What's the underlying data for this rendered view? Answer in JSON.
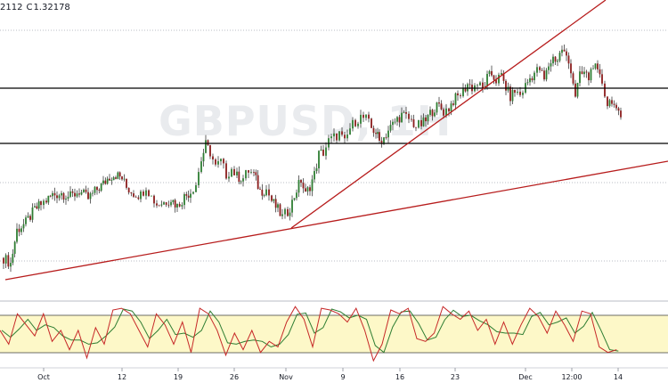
{
  "header": {
    "open_fragment": "2112",
    "close_label": "C",
    "close_value": "1.32178"
  },
  "watermark": "GBPUSD, 1H",
  "chart_data": {
    "type": "candlestick",
    "symbol": "GBPUSD",
    "x_tick_labels": [
      "Oct",
      "12",
      "19",
      "26",
      "Nov",
      "9",
      "16",
      "23",
      "Dec",
      "12:00",
      "14"
    ],
    "price_series": [
      [
        0,
        0.05
      ],
      [
        0.8,
        0.02
      ],
      [
        1.5,
        0.2
      ],
      [
        2.5,
        0.24
      ],
      [
        3.5,
        0.31
      ],
      [
        4.2,
        0.34
      ],
      [
        4.8,
        0.36
      ],
      [
        5.5,
        0.39
      ],
      [
        6.5,
        0.4
      ],
      [
        7.5,
        0.38
      ],
      [
        8.5,
        0.41
      ],
      [
        9.5,
        0.37
      ],
      [
        10.5,
        0.42
      ],
      [
        11.2,
        0.45
      ],
      [
        11.9,
        0.49
      ],
      [
        12.6,
        0.5
      ],
      [
        13.3,
        0.48
      ],
      [
        13.8,
        0.43
      ],
      [
        14.6,
        0.4
      ],
      [
        15.4,
        0.39
      ],
      [
        16,
        0.44
      ],
      [
        16.6,
        0.38
      ],
      [
        17.2,
        0.34
      ],
      [
        18,
        0.35
      ],
      [
        18.8,
        0.37
      ],
      [
        19.5,
        0.33
      ],
      [
        20.3,
        0.38
      ],
      [
        21,
        0.41
      ],
      [
        21.6,
        0.45
      ],
      [
        22.2,
        0.58
      ],
      [
        22.7,
        0.66
      ],
      [
        23.2,
        0.62
      ],
      [
        23.8,
        0.54
      ],
      [
        24.4,
        0.57
      ],
      [
        25,
        0.5
      ],
      [
        25.6,
        0.53
      ],
      [
        26.2,
        0.49
      ],
      [
        26.9,
        0.48
      ],
      [
        27.5,
        0.52
      ],
      [
        28.1,
        0.5
      ],
      [
        28.8,
        0.41
      ],
      [
        29.5,
        0.42
      ],
      [
        30.1,
        0.36
      ],
      [
        30.8,
        0.31
      ],
      [
        31.3,
        0.27
      ],
      [
        31.9,
        0.3
      ],
      [
        32.4,
        0.35
      ],
      [
        32.9,
        0.42
      ],
      [
        33.4,
        0.47
      ],
      [
        33.9,
        0.39
      ],
      [
        34.4,
        0.44
      ],
      [
        34.9,
        0.5
      ],
      [
        35.4,
        0.61
      ],
      [
        35.9,
        0.62
      ],
      [
        36.5,
        0.68
      ],
      [
        37.1,
        0.7
      ],
      [
        37.7,
        0.72
      ],
      [
        38.3,
        0.67
      ],
      [
        38.9,
        0.75
      ],
      [
        39.5,
        0.79
      ],
      [
        40.1,
        0.81
      ],
      [
        40.7,
        0.8
      ],
      [
        41.3,
        0.75
      ],
      [
        41.8,
        0.73
      ],
      [
        42.2,
        0.68
      ],
      [
        42.7,
        0.7
      ],
      [
        43.2,
        0.74
      ],
      [
        43.7,
        0.77
      ],
      [
        44.2,
        0.8
      ],
      [
        44.7,
        0.82
      ],
      [
        45.2,
        0.81
      ],
      [
        45.8,
        0.79
      ],
      [
        46.3,
        0.76
      ],
      [
        46.9,
        0.77
      ],
      [
        47.4,
        0.79
      ],
      [
        47.9,
        0.83
      ],
      [
        48.4,
        0.86
      ],
      [
        48.9,
        0.87
      ],
      [
        49.4,
        0.84
      ],
      [
        50,
        0.86
      ],
      [
        50.5,
        0.9
      ],
      [
        51,
        0.92
      ],
      [
        51.6,
        0.95
      ],
      [
        52.1,
        0.99
      ],
      [
        52.6,
        0.97
      ],
      [
        53.2,
        0.99
      ],
      [
        53.8,
        0.96
      ],
      [
        54.3,
        1.02
      ],
      [
        54.8,
        1.04
      ],
      [
        55.3,
        1.01
      ],
      [
        55.9,
        1.03
      ],
      [
        56.4,
        0.97
      ],
      [
        56.9,
        0.92
      ],
      [
        57.4,
        0.95
      ],
      [
        58,
        0.93
      ],
      [
        58.6,
        0.98
      ],
      [
        59.1,
        1.02
      ],
      [
        59.6,
        1.05
      ],
      [
        60.2,
        1.07
      ],
      [
        60.7,
        1.01
      ],
      [
        61.2,
        1.09
      ],
      [
        61.7,
        1.13
      ],
      [
        62.2,
        1.12
      ],
      [
        62.7,
        1.18
      ],
      [
        63.2,
        1.13
      ],
      [
        63.7,
        1.07
      ],
      [
        64.2,
        0.93
      ],
      [
        64.7,
        1.03
      ],
      [
        65.2,
        1.05
      ],
      [
        65.7,
        1.02
      ],
      [
        66.2,
        1.1
      ],
      [
        66.7,
        1.04
      ],
      [
        67.2,
        1.0
      ],
      [
        67.8,
        0.88
      ],
      [
        68.3,
        0.91
      ],
      [
        68.8,
        0.83
      ],
      [
        69.3,
        0.81
      ],
      [
        69.7,
        0.83
      ]
    ],
    "stochastic": {
      "overbought_band": true,
      "series": [
        [
          0,
          0.55
        ],
        [
          1,
          0.3
        ],
        [
          2,
          0.85
        ],
        [
          3,
          0.65
        ],
        [
          4,
          0.45
        ],
        [
          5,
          0.85
        ],
        [
          6,
          0.35
        ],
        [
          7,
          0.55
        ],
        [
          8,
          0.2
        ],
        [
          9,
          0.55
        ],
        [
          10,
          0.05
        ],
        [
          11,
          0.6
        ],
        [
          12,
          0.3
        ],
        [
          13,
          0.92
        ],
        [
          14,
          0.95
        ],
        [
          15,
          0.85
        ],
        [
          16,
          0.55
        ],
        [
          17,
          0.25
        ],
        [
          18,
          0.85
        ],
        [
          19,
          0.65
        ],
        [
          20,
          0.3
        ],
        [
          21,
          0.7
        ],
        [
          22,
          0.15
        ],
        [
          23,
          0.95
        ],
        [
          24,
          0.85
        ],
        [
          25,
          0.55
        ],
        [
          26,
          0.1
        ],
        [
          27,
          0.5
        ],
        [
          28,
          0.2
        ],
        [
          29,
          0.55
        ],
        [
          30,
          0.15
        ],
        [
          31,
          0.35
        ],
        [
          32,
          0.25
        ],
        [
          33,
          0.7
        ],
        [
          34,
          0.98
        ],
        [
          35,
          0.75
        ],
        [
          36,
          0.25
        ],
        [
          37,
          0.95
        ],
        [
          38,
          0.92
        ],
        [
          39,
          0.85
        ],
        [
          40,
          0.7
        ],
        [
          41,
          0.95
        ],
        [
          42,
          0.55
        ],
        [
          43,
          0.0
        ],
        [
          44,
          0.3
        ],
        [
          45,
          0.92
        ],
        [
          46,
          0.85
        ],
        [
          47,
          0.95
        ],
        [
          48,
          0.4
        ],
        [
          49,
          0.35
        ],
        [
          50,
          0.5
        ],
        [
          51,
          0.98
        ],
        [
          52,
          0.85
        ],
        [
          53,
          0.75
        ],
        [
          54,
          0.9
        ],
        [
          55,
          0.55
        ],
        [
          56,
          0.75
        ],
        [
          57,
          0.3
        ],
        [
          58,
          0.7
        ],
        [
          59,
          0.3
        ],
        [
          60,
          0.65
        ],
        [
          61,
          0.95
        ],
        [
          62,
          0.8
        ],
        [
          63,
          0.5
        ],
        [
          64,
          0.9
        ],
        [
          65,
          0.65
        ],
        [
          66,
          0.35
        ],
        [
          67,
          0.9
        ],
        [
          68,
          0.85
        ],
        [
          69,
          0.25
        ],
        [
          70,
          0.15
        ],
        [
          71,
          0.2
        ]
      ]
    }
  }
}
